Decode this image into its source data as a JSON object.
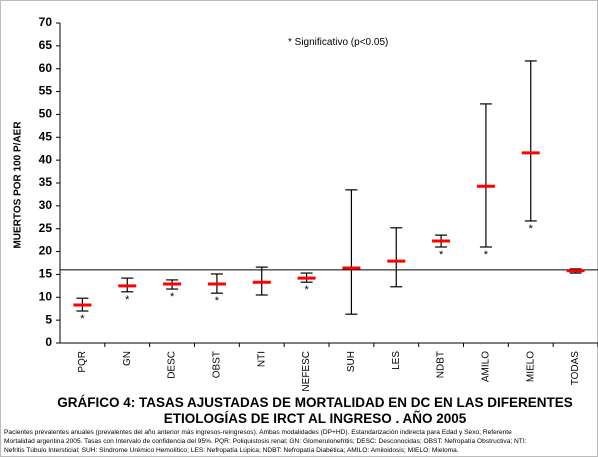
{
  "chart_data": {
    "type": "interval",
    "title": [
      "GRÁFICO 4:  TASAS AJUSTADAS DE MORTALIDAD EN DC  EN LAS DIFERENTES",
      "ETIOLOGÍAS DE IRCT AL INGRESO . AÑO 2005"
    ],
    "y_label": "MUERTOS POR 100 P/AER",
    "annotation": "* Significativo (p<0.05)",
    "footnote": [
      "Pacientes prevalentes anuales (prevalentes del año anterior más ingresos-reingresos). Ambas modalidades (DP+HD). Estandarización indirecta para Edad y Sexo; Referente",
      "Mortalidad argentina 2005. Tasas con Intervalo de confidencia del 95%. PQR: Poliquistosis renal; GN: Glomerulonefritis; DESC: Desconocidas; OBST: Nefropatía Obstructiva; NTI:",
      "Nefritis Túbulo Intersticial; SUH: Síndrome Urémico Hemolítico; LES: Nefropatía Lúpica; NDBT: Nefropatía Diabética; AMILO: Amiloidosis; MIELO: Mieloma."
    ],
    "categories": [
      "PQR",
      "GN",
      "DESC",
      "OBST",
      "NTI",
      "NEFESC",
      "SUH",
      "LES",
      "NDBT",
      "AMILO",
      "MIELO",
      "TODAS"
    ],
    "values": [
      8.3,
      12.5,
      12.9,
      12.9,
      13.3,
      14.2,
      16.4,
      17.9,
      22.3,
      34.3,
      41.6,
      15.8
    ],
    "lower": [
      7.0,
      11.2,
      11.8,
      10.9,
      10.5,
      13.3,
      6.3,
      12.3,
      21.0,
      21.0,
      26.7,
      15.3
    ],
    "upper": [
      9.8,
      14.2,
      13.8,
      15.1,
      16.6,
      15.3,
      33.5,
      25.2,
      23.6,
      52.3,
      61.7,
      16.2
    ],
    "markers": [
      "*",
      "*",
      "*",
      "*",
      null,
      "*",
      null,
      null,
      "*",
      "*",
      "*",
      null
    ],
    "reference_line": 16,
    "color": "#ff0000",
    "interval_color": "#000000",
    "ylim": [
      0,
      70
    ],
    "yticks": [
      0,
      5,
      10,
      15,
      20,
      25,
      30,
      35,
      40,
      45,
      50,
      55,
      60,
      65,
      70
    ]
  }
}
